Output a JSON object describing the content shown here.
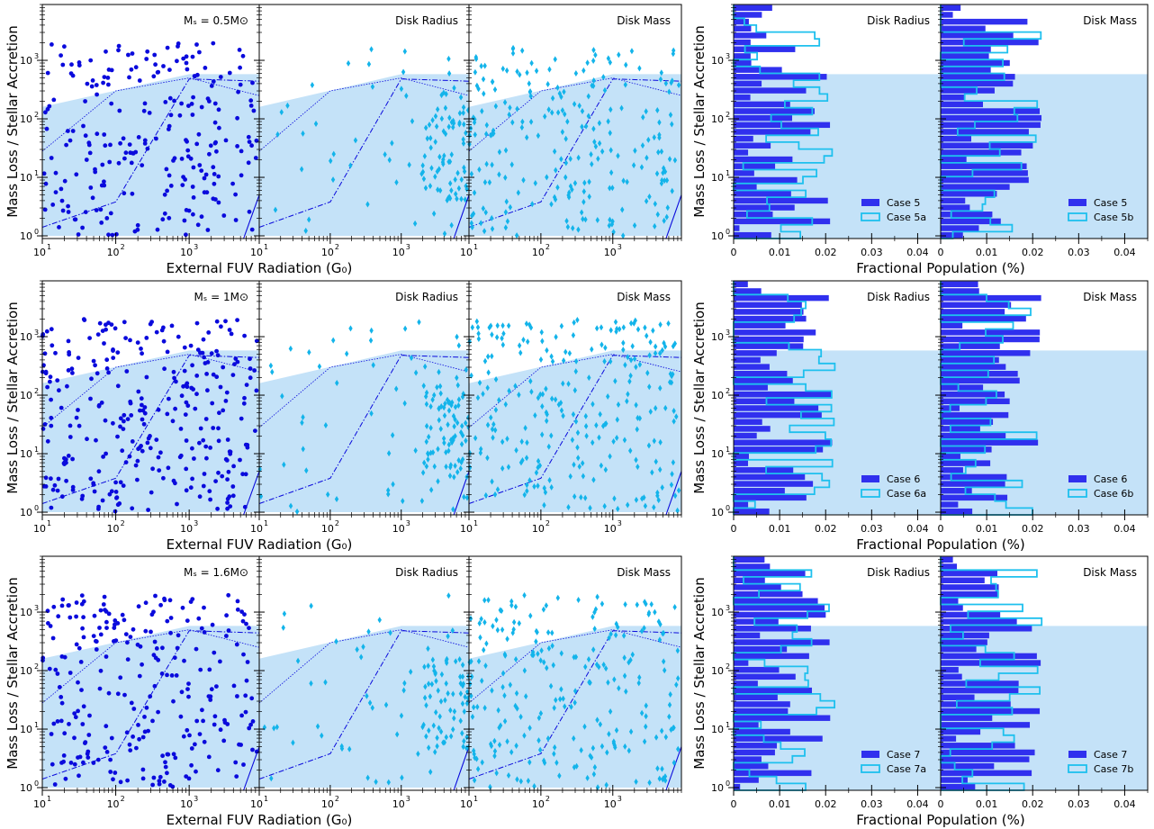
{
  "figure": {
    "scatter_ylabel": "Mass Loss / Stellar Accretion",
    "scatter_xlabel": "External FUV Radiation (G₀)",
    "hist_ylabel": "Mass Loss / Stellar Accretion",
    "hist_xlabel": "Fractional Population (%)",
    "colors": {
      "dark": "#0a0adc",
      "light": "#13b4ea",
      "band": "#c4e2f8",
      "hist_fill": "#3030ee",
      "hist_edge": "#1ec0ee"
    }
  },
  "chart_data": [
    {
      "type": "scatter",
      "row": 0,
      "panels": [
        {
          "title": "Mₛ = 0.5M⊙",
          "series": "dark",
          "marker": "circle",
          "n_points": 240
        },
        {
          "title": "Disk Radius",
          "series": "light",
          "marker": "diamond",
          "n_points": 110
        },
        {
          "title": "Disk Mass",
          "series": "light",
          "marker": "diamond",
          "n_points": 230
        }
      ],
      "xscale": "log",
      "yscale": "log",
      "xlim": [
        10,
        9000
      ],
      "ylim": [
        0.9,
        9000
      ],
      "x_ticks": [
        "10¹",
        "10²",
        "10³"
      ],
      "y_ticks": [
        "10⁰",
        "10¹",
        "10²",
        "10³"
      ],
      "band": {
        "x": [
          10,
          1000,
          9000
        ],
        "y_upper": [
          160,
          580,
          580
        ],
        "y_lower": 1
      }
    },
    {
      "type": "bar",
      "row": 0,
      "orientation": "horizontal",
      "panels": [
        {
          "title": "Disk Radius",
          "legend": [
            "Case 5",
            "Case 5a"
          ]
        },
        {
          "title": "Disk Mass",
          "legend": [
            "Case 5",
            "Case 5b"
          ]
        }
      ],
      "xlim": [
        0,
        0.045
      ],
      "x_ticks": [
        "0",
        "0.01",
        "0.02",
        "0.03",
        "0.04"
      ],
      "band_upper": 580
    },
    {
      "type": "scatter",
      "row": 1,
      "panels": [
        {
          "title": "Mₛ = 1M⊙",
          "series": "dark",
          "marker": "circle",
          "n_points": 300
        },
        {
          "title": "Disk Radius",
          "series": "light",
          "marker": "diamond",
          "n_points": 130
        },
        {
          "title": "Disk Mass",
          "series": "light",
          "marker": "diamond",
          "n_points": 250
        }
      ],
      "xscale": "log",
      "yscale": "log",
      "xlim": [
        10,
        9000
      ],
      "ylim": [
        0.9,
        9000
      ],
      "x_ticks": [
        "10¹",
        "10²",
        "10³"
      ],
      "y_ticks": [
        "10⁰",
        "10¹",
        "10²",
        "10³"
      ],
      "band": {
        "x": [
          10,
          1000,
          9000
        ],
        "y_upper": [
          160,
          580,
          580
        ],
        "y_lower": 1
      }
    },
    {
      "type": "bar",
      "row": 1,
      "orientation": "horizontal",
      "panels": [
        {
          "title": "Disk Radius",
          "legend": [
            "Case 6",
            "Case 6a"
          ]
        },
        {
          "title": "Disk Mass",
          "legend": [
            "Case 6",
            "Case 6b"
          ]
        }
      ],
      "xlim": [
        0,
        0.045
      ],
      "x_ticks": [
        "0",
        "0.01",
        "0.02",
        "0.03",
        "0.04"
      ],
      "band_upper": 580
    },
    {
      "type": "scatter",
      "row": 2,
      "panels": [
        {
          "title": "Mₛ = 1.6M⊙",
          "series": "dark",
          "marker": "circle",
          "n_points": 260
        },
        {
          "title": "Disk Radius",
          "series": "light",
          "marker": "diamond",
          "n_points": 110
        },
        {
          "title": "Disk Mass",
          "series": "light",
          "marker": "diamond",
          "n_points": 230
        }
      ],
      "xscale": "log",
      "yscale": "log",
      "xlim": [
        10,
        9000
      ],
      "ylim": [
        0.9,
        9000
      ],
      "x_ticks": [
        "10¹",
        "10²",
        "10³"
      ],
      "y_ticks": [
        "10⁰",
        "10¹",
        "10²",
        "10³"
      ],
      "band": {
        "x": [
          10,
          1000,
          9000
        ],
        "y_upper": [
          160,
          580,
          580
        ],
        "y_lower": 1
      }
    },
    {
      "type": "bar",
      "row": 2,
      "orientation": "horizontal",
      "panels": [
        {
          "title": "Disk Radius",
          "legend": [
            "Case 7",
            "Case 7a"
          ]
        },
        {
          "title": "Disk Mass",
          "legend": [
            "Case 7",
            "Case 7b"
          ]
        }
      ],
      "xlim": [
        0,
        0.045
      ],
      "x_ticks": [
        "0",
        "0.01",
        "0.02",
        "0.03",
        "0.04"
      ],
      "band_upper": 580
    }
  ]
}
